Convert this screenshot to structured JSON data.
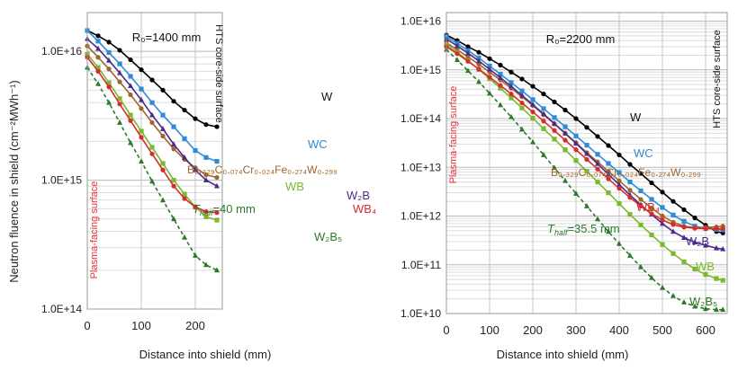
{
  "y_axis_label": "Neutron fluence in shield (cm⁻²MWh⁻¹)",
  "chart_data": [
    {
      "type": "line",
      "yscale": "log",
      "grid": true,
      "radius_label": "R₀=1400 mm",
      "xlabel": "Distance into shield (mm)",
      "xlim": [
        0,
        250
      ],
      "ylim": [
        100000000000000.0,
        2e+16
      ],
      "x_ticks": [
        0,
        100,
        200
      ],
      "x_tick_labels": [
        "0",
        "100",
        "200"
      ],
      "y_ticks": [
        100000000000000.0,
        1000000000000000.0,
        1e+16
      ],
      "y_tick_labels": [
        "1.0E+14",
        "1.0E+15",
        "1.0E+16"
      ],
      "annotations": {
        "plasma_facing": "Plasma-facing surface",
        "hts_surface": "HTS core-side surface",
        "thalf": "T_half=40 mm"
      },
      "series": [
        {
          "name": "W",
          "color": "#000000",
          "marker": "circle",
          "x": [
            0,
            20,
            40,
            60,
            80,
            100,
            120,
            140,
            160,
            180,
            200,
            220,
            240
          ],
          "values": [
            1.45e+16,
            1.32e+16,
            1.18e+16,
            1.02e+16,
            8600000000000000.0,
            7200000000000000.0,
            6000000000000000.0,
            5000000000000000.0,
            4100000000000000.0,
            3500000000000000.0,
            3000000000000000.0,
            2700000000000000.0,
            2600000000000000.0
          ]
        },
        {
          "name": "WC",
          "color": "#2e8bd6",
          "marker": "square",
          "x": [
            0,
            20,
            40,
            60,
            80,
            100,
            120,
            140,
            160,
            180,
            200,
            220,
            240
          ],
          "values": [
            1.45e+16,
            1.2e+16,
            9800000000000000.0,
            8000000000000000.0,
            6400000000000000.0,
            5100000000000000.0,
            4000000000000000.0,
            3200000000000000.0,
            2600000000000000.0,
            2100000000000000.0,
            1700000000000000.0,
            1500000000000000.0,
            1400000000000000.0
          ]
        },
        {
          "name": "B0.329C0.074Cr0.024Fe0.274W0.299",
          "color": "#a0652a",
          "marker": "circle",
          "x": [
            0,
            20,
            40,
            60,
            80,
            100,
            120,
            140,
            160,
            180,
            200,
            220,
            240
          ],
          "values": [
            1.1e+16,
            9000000000000000.0,
            7300000000000000.0,
            5800000000000000.0,
            4600000000000000.0,
            3600000000000000.0,
            2800000000000000.0,
            2200000000000000.0,
            1750000000000000.0,
            1450000000000000.0,
            1250000000000000.0,
            1100000000000000.0,
            1050000000000000.0
          ]
        },
        {
          "name": "W2B",
          "color": "#4b2a8a",
          "marker": "triangle",
          "x": [
            0,
            20,
            40,
            60,
            80,
            100,
            120,
            140,
            160,
            180,
            200,
            220,
            240
          ],
          "values": [
            1.25e+16,
            1.05e+16,
            8500000000000000.0,
            6800000000000000.0,
            5400000000000000.0,
            4200000000000000.0,
            3200000000000000.0,
            2500000000000000.0,
            1900000000000000.0,
            1500000000000000.0,
            1200000000000000.0,
            1000000000000000.0,
            900000000000000.0
          ]
        },
        {
          "name": "WB",
          "color": "#7ab92e",
          "marker": "square",
          "x": [
            0,
            20,
            40,
            60,
            80,
            100,
            120,
            140,
            160,
            180,
            200,
            220,
            240
          ],
          "values": [
            9500000000000000.0,
            7500000000000000.0,
            5700000000000000.0,
            4300000000000000.0,
            3200000000000000.0,
            2400000000000000.0,
            1800000000000000.0,
            1350000000000000.0,
            1000000000000000.0,
            780000000000000.0,
            620000000000000.0,
            520000000000000.0,
            490000000000000.0
          ]
        },
        {
          "name": "WB4",
          "color": "#d42d2d",
          "marker": "circle",
          "x": [
            0,
            20,
            40,
            60,
            80,
            100,
            120,
            140,
            160,
            180,
            200,
            220,
            240
          ],
          "values": [
            9000000000000000.0,
            7000000000000000.0,
            5300000000000000.0,
            3900000000000000.0,
            2900000000000000.0,
            2150000000000000.0,
            1600000000000000.0,
            1200000000000000.0,
            900000000000000.0,
            720000000000000.0,
            620000000000000.0,
            570000000000000.0,
            560000000000000.0
          ]
        },
        {
          "name": "W2B5",
          "color": "#2a7a2a",
          "marker": "triangle",
          "x": [
            0,
            20,
            40,
            60,
            80,
            100,
            120,
            140,
            160,
            180,
            200,
            220,
            240
          ],
          "values": [
            7500000000000000.0,
            5600000000000000.0,
            4000000000000000.0,
            2800000000000000.0,
            1950000000000000.0,
            1400000000000000.0,
            980000000000000.0,
            700000000000000.0,
            500000000000000.0,
            360000000000000.0,
            260000000000000.0,
            220000000000000.0,
            200000000000000.0
          ]
        }
      ]
    },
    {
      "type": "line",
      "yscale": "log",
      "grid": true,
      "radius_label": "R₀=2200 mm",
      "xlabel": "Distance into shield (mm)",
      "xlim": [
        0,
        650
      ],
      "ylim": [
        10000000000.0,
        1.5e+16
      ],
      "x_ticks": [
        0,
        100,
        200,
        300,
        400,
        500,
        600
      ],
      "x_tick_labels": [
        "0",
        "100",
        "200",
        "300",
        "400",
        "500",
        "600"
      ],
      "y_ticks": [
        10000000000.0,
        100000000000.0,
        1000000000000.0,
        10000000000000.0,
        100000000000000.0,
        1000000000000000.0,
        1e+16
      ],
      "y_tick_labels": [
        "1.0E+10",
        "1.0E+11",
        "1.0E+12",
        "1.0E+13",
        "1.0E+14",
        "1.0E+15",
        "1.0E+16"
      ],
      "annotations": {
        "plasma_facing": "Plasma-facing surface",
        "hts_surface": "HTS core-side surface",
        "thalf": "T_half=35.5 mm"
      },
      "series": [
        {
          "name": "W",
          "color": "#000000",
          "marker": "circle",
          "x": [
            0,
            25,
            50,
            75,
            100,
            125,
            150,
            175,
            200,
            225,
            250,
            275,
            300,
            325,
            350,
            375,
            400,
            425,
            450,
            475,
            500,
            525,
            550,
            575,
            600,
            625,
            640
          ],
          "values": [
            5200000000000000.0,
            4000000000000000.0,
            3000000000000000.0,
            2300000000000000.0,
            1700000000000000.0,
            1250000000000000.0,
            900000000000000.0,
            650000000000000.0,
            460000000000000.0,
            320000000000000.0,
            220000000000000.0,
            150000000000000.0,
            100000000000000.0,
            66000000000000.0,
            43000000000000.0,
            28000000000000.0,
            18000000000000.0,
            11500000000000.0,
            7500000000000.0,
            4800000000000.0,
            3100000000000.0,
            2000000000000.0,
            1350000000000.0,
            920000000000.0,
            650000000000.0,
            480000000000.0,
            450000000000.0
          ]
        },
        {
          "name": "WC",
          "color": "#2e8bd6",
          "marker": "square",
          "x": [
            0,
            25,
            50,
            75,
            100,
            125,
            150,
            175,
            200,
            225,
            250,
            275,
            300,
            325,
            350,
            375,
            400,
            425,
            450,
            475,
            500,
            525,
            550,
            575,
            600,
            625,
            640
          ],
          "values": [
            4800000000000000.0,
            3500000000000000.0,
            2500000000000000.0,
            1750000000000000.0,
            1200000000000000.0,
            820000000000000.0,
            550000000000000.0,
            370000000000000.0,
            245000000000000.0,
            160000000000000.0,
            105000000000000.0,
            68000000000000.0,
            44000000000000.0,
            28500000000000.0,
            18500000000000.0,
            12000000000000.0,
            7800000000000.0,
            5000000000000.0,
            3300000000000.0,
            2200000000000.0,
            1500000000000.0,
            1050000000000.0,
            780000000000.0,
            620000000000.0,
            560000000000.0,
            530000000000.0,
            520000000000.0
          ]
        },
        {
          "name": "B0.329C0.074Cr0.024Fe0.274W0.299",
          "color": "#a0652a",
          "marker": "circle",
          "x": [
            0,
            25,
            50,
            75,
            100,
            125,
            150,
            175,
            200,
            225,
            250,
            275,
            300,
            325,
            350,
            375,
            400,
            425,
            450,
            475,
            500,
            525,
            550,
            575,
            600,
            625,
            640
          ],
          "values": [
            3600000000000000.0,
            2600000000000000.0,
            1850000000000000.0,
            1300000000000000.0,
            900000000000000.0,
            620000000000000.0,
            420000000000000.0,
            280000000000000.0,
            185000000000000.0,
            120000000000000.0,
            78000000000000.0,
            50000000000000.0,
            32000000000000.0,
            20000000000000.0,
            13000000000000.0,
            8300000000000.0,
            5300000000000.0,
            3400000000000.0,
            2200000000000.0,
            1450000000000.0,
            1000000000000.0,
            750000000000.0,
            620000000000.0,
            580000000000.0,
            580000000000.0,
            600000000000.0,
            620000000000.0
          ]
        },
        {
          "name": "W2B",
          "color": "#4b2a8a",
          "marker": "triangle",
          "x": [
            0,
            25,
            50,
            75,
            100,
            125,
            150,
            175,
            200,
            225,
            250,
            275,
            300,
            325,
            350,
            375,
            400,
            425,
            450,
            475,
            500,
            525,
            550,
            575,
            600,
            625,
            640
          ],
          "values": [
            4300000000000000.0,
            3100000000000000.0,
            2200000000000000.0,
            1520000000000000.0,
            1030000000000000.0,
            690000000000000.0,
            460000000000000.0,
            300000000000000.0,
            195000000000000.0,
            125000000000000.0,
            79000000000000.0,
            50000000000000.0,
            31000000000000.0,
            19000000000000.0,
            11800000000000.0,
            7200000000000.0,
            4400000000000.0,
            2700000000000.0,
            1700000000000.0,
            1080000000000.0,
            700000000000.0,
            480000000000.0,
            360000000000.0,
            290000000000.0,
            250000000000.0,
            220000000000.0,
            210000000000.0
          ]
        },
        {
          "name": "WB",
          "color": "#7ab92e",
          "marker": "square",
          "x": [
            0,
            25,
            50,
            75,
            100,
            125,
            150,
            175,
            200,
            225,
            250,
            275,
            300,
            325,
            350,
            375,
            400,
            425,
            450,
            475,
            500,
            525,
            550,
            575,
            600,
            625,
            640
          ],
          "values": [
            3300000000000000.0,
            2300000000000000.0,
            1550000000000000.0,
            1020000000000000.0,
            660000000000000.0,
            420000000000000.0,
            265000000000000.0,
            165000000000000.0,
            102000000000000.0,
            62000000000000.0,
            38000000000000.0,
            23000000000000.0,
            13800000000000.0,
            8300000000000.0,
            5000000000000.0,
            3000000000000.0,
            1800000000000.0,
            1080000000000.0,
            660000000000.0,
            410000000000.0,
            260000000000.0,
            170000000000.0,
            115000000000.0,
            82000000000.0,
            63000000000.0,
            52000000000.0,
            48000000000.0
          ]
        },
        {
          "name": "WB4",
          "color": "#d42d2d",
          "marker": "circle",
          "x": [
            0,
            25,
            50,
            75,
            100,
            125,
            150,
            175,
            200,
            225,
            250,
            275,
            300,
            325,
            350,
            375,
            400,
            425,
            450,
            475,
            500,
            525,
            550,
            575,
            600,
            625,
            640
          ],
          "values": [
            3000000000000000.0,
            2150000000000000.0,
            1500000000000000.0,
            1040000000000000.0,
            710000000000000.0,
            480000000000000.0,
            320000000000000.0,
            210000000000000.0,
            137000000000000.0,
            89000000000000.0,
            57000000000000.0,
            36000000000000.0,
            23000000000000.0,
            14500000000000.0,
            9200000000000.0,
            5800000000000.0,
            3700000000000.0,
            2400000000000.0,
            1600000000000.0,
            1120000000000.0,
            830000000000.0,
            670000000000.0,
            590000000000.0,
            560000000000.0,
            550000000000.0,
            550000000000.0,
            550000000000.0
          ]
        },
        {
          "name": "W2B5",
          "color": "#2a7a2a",
          "marker": "triangle",
          "x": [
            0,
            25,
            50,
            75,
            100,
            125,
            150,
            175,
            200,
            225,
            250,
            275,
            300,
            325,
            350,
            375,
            400,
            425,
            450,
            475,
            500,
            525,
            550,
            575,
            600,
            625,
            640
          ],
          "values": [
            2600000000000000.0,
            1600000000000000.0,
            960000000000000.0,
            570000000000000.0,
            330000000000000.0,
            190000000000000.0,
            108000000000000.0,
            60000000000000.0,
            33000000000000.0,
            18000000000000.0,
            9800000000000.0,
            5300000000000.0,
            2900000000000.0,
            1600000000000.0,
            870000000000.0,
            480000000000.0,
            270000000000.0,
            155000000000.0,
            90000000000.0,
            54000000000.0,
            34000000000.0,
            23000000000.0,
            17000000000.0,
            14000000000.0,
            12500000000.0,
            12000000000.0,
            12000000000.0
          ]
        }
      ]
    }
  ],
  "labels_left": {
    "W": "W",
    "WC": "WC",
    "WB": "WB",
    "W2B": "W₂B",
    "WB4": "WB₄",
    "W2B5": "W₂B₅",
    "mix": "B₀.₃₂₉C₀.₀₇₄Cr₀.₀₂₄Fe₀.₂₇₄W₀.₂₉₉"
  },
  "labels_right": {
    "W": "W",
    "WC": "WC",
    "WB": "WB",
    "W2B": "W₂B",
    "WB4": "WB₄",
    "W2B5": "W₂B₅",
    "mix": "B₀.₃₂₉C₀.₀₇₄Cr₀.₀₂₄Fe₀.₂₇₄W₀.₂₉₉"
  },
  "thalf_prefix": "T",
  "thalf_sub": "half",
  "thalf_left_value": "=40 mm",
  "thalf_right_value": "=35.5 mm"
}
